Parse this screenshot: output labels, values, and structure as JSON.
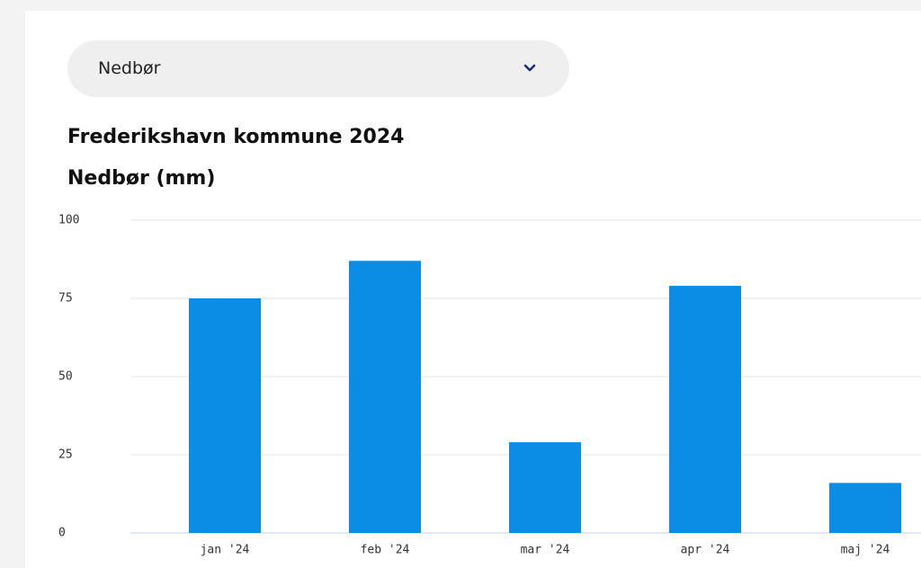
{
  "dropdown": {
    "label": "Nedbør"
  },
  "chart_data": {
    "type": "bar",
    "title": "Frederikshavn kommune 2024",
    "subtitle": "Nedbør (mm)",
    "categories": [
      "jan '24",
      "feb '24",
      "mar '24",
      "apr '24",
      "maj '24"
    ],
    "values": [
      75,
      87,
      29,
      79,
      16
    ],
    "color": "#0b8de6",
    "ylim": [
      0,
      100
    ],
    "yticks": [
      0,
      25,
      50,
      75,
      100
    ],
    "grid": true
  }
}
